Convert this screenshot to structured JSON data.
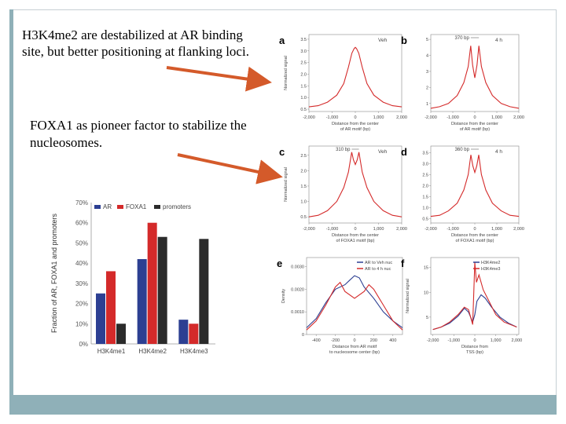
{
  "slide": {
    "text1": "H3K4me2 are destabilized at AR binding site, but better positioning at flanking loci.",
    "text2": "FOXA1 as pioneer factor to stabilize the nucleosomes."
  },
  "colors": {
    "accent": "#8fb0b8",
    "red": "#d42a2a",
    "blue": "#2c3f92",
    "dark": "#2b2b2b"
  },
  "chart_data": [
    {
      "type": "bar",
      "categories": [
        "H3K4me1",
        "H3K4me2",
        "H3K4me3"
      ],
      "ylabel": "Fraction of AR, FOXA1 and promoters",
      "ylim": [
        0,
        70
      ],
      "yticks": [
        "0%",
        "10%",
        "20%",
        "30%",
        "40%",
        "50%",
        "60%",
        "70%"
      ],
      "legend_placement": "top",
      "series": [
        {
          "name": "AR",
          "color": "#2c3f92",
          "values": [
            25,
            42,
            12
          ]
        },
        {
          "name": "FOXA1",
          "color": "#d42a2a",
          "values": [
            36,
            60,
            10
          ]
        },
        {
          "name": "promoters",
          "color": "#2b2b2b",
          "values": [
            10,
            53,
            52
          ]
        }
      ]
    },
    {
      "panel": "a",
      "type": "line",
      "legend": "Veh",
      "xlabel": "Distance from the center of AR motif (bp)",
      "ylabel": "Normalized signal",
      "xticks": [
        "-2,000",
        "-1,000",
        "0",
        "1,000",
        "2,000"
      ],
      "yticks": [
        "0.5",
        "1.0",
        "1.5",
        "2.0",
        "2.5",
        "3.0",
        "3.5"
      ],
      "xlim": [
        -2000,
        2000
      ],
      "ylim": [
        0.4,
        3.7
      ],
      "series": [
        {
          "name": "Veh",
          "color": "#d42a2a",
          "x": [
            -2000,
            -1600,
            -1200,
            -800,
            -500,
            -300,
            -150,
            -50,
            0,
            50,
            150,
            300,
            500,
            800,
            1200,
            1600,
            2000
          ],
          "y": [
            0.6,
            0.65,
            0.8,
            1.1,
            1.6,
            2.3,
            2.9,
            3.1,
            3.15,
            3.1,
            2.9,
            2.3,
            1.6,
            1.1,
            0.8,
            0.65,
            0.6
          ]
        }
      ]
    },
    {
      "panel": "b",
      "type": "line",
      "legend": "4 h",
      "annotation": "370 bp",
      "xlabel": "Distance from the center of AR motif (bp)",
      "xticks": [
        "-2,000",
        "-1,000",
        "0",
        "1,000",
        "2,000"
      ],
      "yticks": [
        "1",
        "2",
        "3",
        "4",
        "5"
      ],
      "xlim": [
        -2000,
        2000
      ],
      "ylim": [
        0.5,
        5.3
      ],
      "series": [
        {
          "name": "4 h",
          "color": "#d42a2a",
          "x": [
            -2000,
            -1600,
            -1200,
            -800,
            -500,
            -300,
            -185,
            -100,
            0,
            100,
            185,
            300,
            500,
            800,
            1200,
            1600,
            2000
          ],
          "y": [
            0.7,
            0.8,
            1.0,
            1.5,
            2.3,
            3.3,
            4.6,
            3.4,
            2.6,
            3.4,
            4.6,
            3.3,
            2.3,
            1.5,
            1.0,
            0.8,
            0.7
          ]
        }
      ]
    },
    {
      "panel": "c",
      "type": "line",
      "legend": "Veh",
      "annotation": "310 bp",
      "xlabel": "Distance from the center of FOXA1 motif (bp)",
      "ylabel": "Normalized signal",
      "xticks": [
        "-2,000",
        "-1,000",
        "0",
        "1,000",
        "2,000"
      ],
      "yticks": [
        "0.5",
        "1.0",
        "1.5",
        "2.0",
        "2.5"
      ],
      "xlim": [
        -2000,
        2000
      ],
      "ylim": [
        0.3,
        2.8
      ],
      "series": [
        {
          "name": "Veh",
          "color": "#d42a2a",
          "x": [
            -2000,
            -1600,
            -1200,
            -800,
            -500,
            -300,
            -155,
            -80,
            0,
            80,
            155,
            300,
            500,
            800,
            1200,
            1600,
            2000
          ],
          "y": [
            0.5,
            0.55,
            0.7,
            1.0,
            1.45,
            1.95,
            2.6,
            2.35,
            2.2,
            2.35,
            2.6,
            1.95,
            1.45,
            1.0,
            0.7,
            0.55,
            0.5
          ]
        }
      ]
    },
    {
      "panel": "d",
      "type": "line",
      "legend": "4 h",
      "annotation": "360 bp",
      "xlabel": "Distance from the center of FOXA1 motif (bp)",
      "xticks": [
        "-2,000",
        "-1,000",
        "0",
        "1,000",
        "2,000"
      ],
      "yticks": [
        "0.5",
        "1.0",
        "1.5",
        "2.0",
        "2.5",
        "3.0",
        "3.5"
      ],
      "xlim": [
        -2000,
        2000
      ],
      "ylim": [
        0.3,
        3.8
      ],
      "series": [
        {
          "name": "4 h",
          "color": "#d42a2a",
          "x": [
            -2000,
            -1600,
            -1200,
            -800,
            -500,
            -300,
            -180,
            -90,
            0,
            90,
            180,
            300,
            500,
            800,
            1200,
            1600,
            2000
          ],
          "y": [
            0.6,
            0.65,
            0.85,
            1.2,
            1.8,
            2.5,
            3.4,
            2.9,
            2.6,
            2.9,
            3.4,
            2.5,
            1.8,
            1.2,
            0.85,
            0.65,
            0.6
          ]
        }
      ]
    },
    {
      "panel": "e",
      "type": "line",
      "xlabel": "Distance from AR motif to nucleosome center (bp)",
      "ylabel": "Density",
      "xticks": [
        "-400",
        "-200",
        "0",
        "200",
        "400"
      ],
      "yticks": [
        "0",
        "0.0010",
        "0.0020",
        "0.0030"
      ],
      "xlim": [
        -500,
        500
      ],
      "ylim": [
        0,
        0.0034
      ],
      "legend_placement": "top-right",
      "series": [
        {
          "name": "AR to Veh nuc",
          "color": "#2c3f92",
          "x": [
            -500,
            -400,
            -300,
            -200,
            -100,
            -50,
            0,
            50,
            100,
            200,
            300,
            400,
            500
          ],
          "y": [
            0.0003,
            0.0007,
            0.0014,
            0.002,
            0.0022,
            0.0024,
            0.0026,
            0.0025,
            0.0021,
            0.0016,
            0.001,
            0.0006,
            0.0003
          ]
        },
        {
          "name": "AR to 4 h nuc",
          "color": "#d42a2a",
          "x": [
            -500,
            -400,
            -300,
            -200,
            -150,
            -100,
            0,
            100,
            150,
            200,
            300,
            400,
            500
          ],
          "y": [
            0.0002,
            0.0006,
            0.0013,
            0.0021,
            0.0023,
            0.0019,
            0.0016,
            0.0019,
            0.0022,
            0.002,
            0.0013,
            0.0006,
            0.0002
          ]
        }
      ]
    },
    {
      "panel": "f",
      "type": "line",
      "xlabel": "Distance from TSS (bp)",
      "ylabel": "Normalized signal",
      "xticks": [
        "-2,000",
        "-1,000",
        "0",
        "1,000",
        "2,000"
      ],
      "yticks": [
        "5",
        "10",
        "15"
      ],
      "xlim": [
        -2100,
        2100
      ],
      "ylim": [
        1.5,
        17
      ],
      "legend_placement": "top-right",
      "series": [
        {
          "name": "H3K4me2",
          "color": "#2c3f92",
          "x": [
            -2000,
            -1600,
            -1200,
            -800,
            -500,
            -300,
            -100,
            0,
            100,
            300,
            500,
            800,
            1200,
            1600,
            2000
          ],
          "y": [
            2.5,
            3.0,
            3.8,
            5.2,
            6.8,
            6.0,
            4.0,
            5.5,
            8.2,
            9.5,
            8.8,
            7.0,
            5.0,
            3.8,
            3.0
          ]
        },
        {
          "name": "H3K4me3",
          "color": "#d42a2a",
          "x": [
            -2000,
            -1600,
            -1200,
            -800,
            -500,
            -300,
            -100,
            0,
            80,
            200,
            400,
            700,
            1000,
            1400,
            2000
          ],
          "y": [
            2.5,
            3.0,
            4.0,
            5.5,
            7.0,
            6.5,
            3.5,
            16.0,
            12.0,
            13.5,
            10.5,
            8.0,
            5.5,
            4.0,
            3.0
          ]
        }
      ]
    }
  ]
}
